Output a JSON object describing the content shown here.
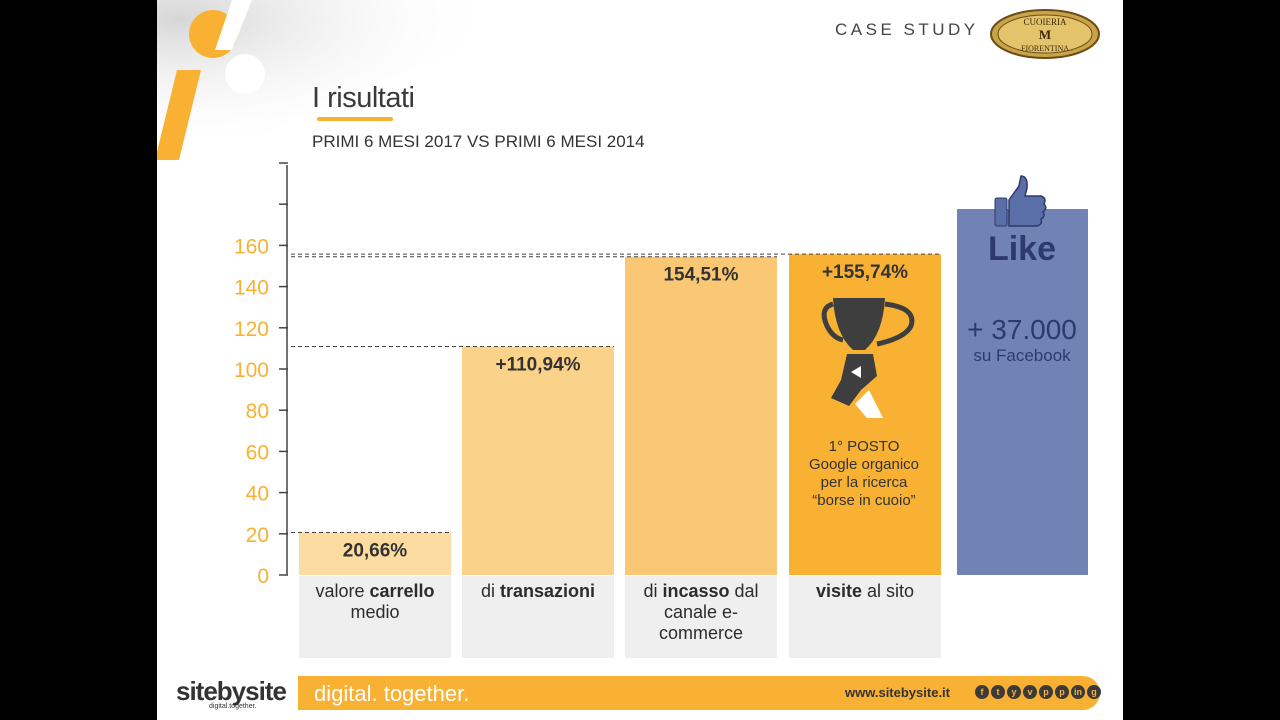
{
  "header": {
    "case_study": "CASE STUDY",
    "title": "I risultati",
    "subtitle": "PRIMI 6 MESI 2017 VS PRIMI 6 MESI 2014"
  },
  "brand": {
    "logo_top": "CUOIERIA",
    "logo_bottom": "FIORENTINA",
    "monogram": "M"
  },
  "colors": {
    "orange": "#f8b133",
    "light_orange_1": "#fcdca0",
    "light_orange_2": "#fbd289",
    "light_orange_3": "#fac874",
    "facebook_blue": "#7183b5"
  },
  "chart_data": {
    "type": "bar",
    "ylim": [
      0,
      180
    ],
    "yticks": [
      0,
      20,
      40,
      60,
      80,
      100,
      120,
      140,
      160
    ],
    "categories": [
      {
        "pre": "valore",
        "bold": "carrello",
        "post": "medio"
      },
      {
        "pre": "di",
        "bold": "transazioni",
        "post": ""
      },
      {
        "pre": "di",
        "bold": "incasso",
        "post": "dal canale e-commerce"
      },
      {
        "pre": "",
        "bold": "visite",
        "post": "al sito"
      }
    ],
    "values": [
      20.66,
      110.94,
      154.51,
      155.74
    ],
    "labels": [
      "20,66%",
      "+110,94%",
      "154,51%",
      "+155,74%"
    ]
  },
  "facebook": {
    "like": "Like",
    "count": "+ 37.000",
    "text": "su Facebook",
    "icon": "thumbs-up-icon"
  },
  "badge": {
    "icon": "trophy-icon",
    "line1": "1° POSTO",
    "line2": "Google organico",
    "line3": "per la ricerca",
    "line4": "“borse in cuoio”"
  },
  "footer": {
    "logo": "sitebysite",
    "logo_sub": "digital.together.",
    "tagline": "digital. together.",
    "site": "www.sitebysite.it",
    "social": [
      "f",
      "t",
      "y",
      "v",
      "p",
      "p",
      "in",
      "g"
    ]
  }
}
